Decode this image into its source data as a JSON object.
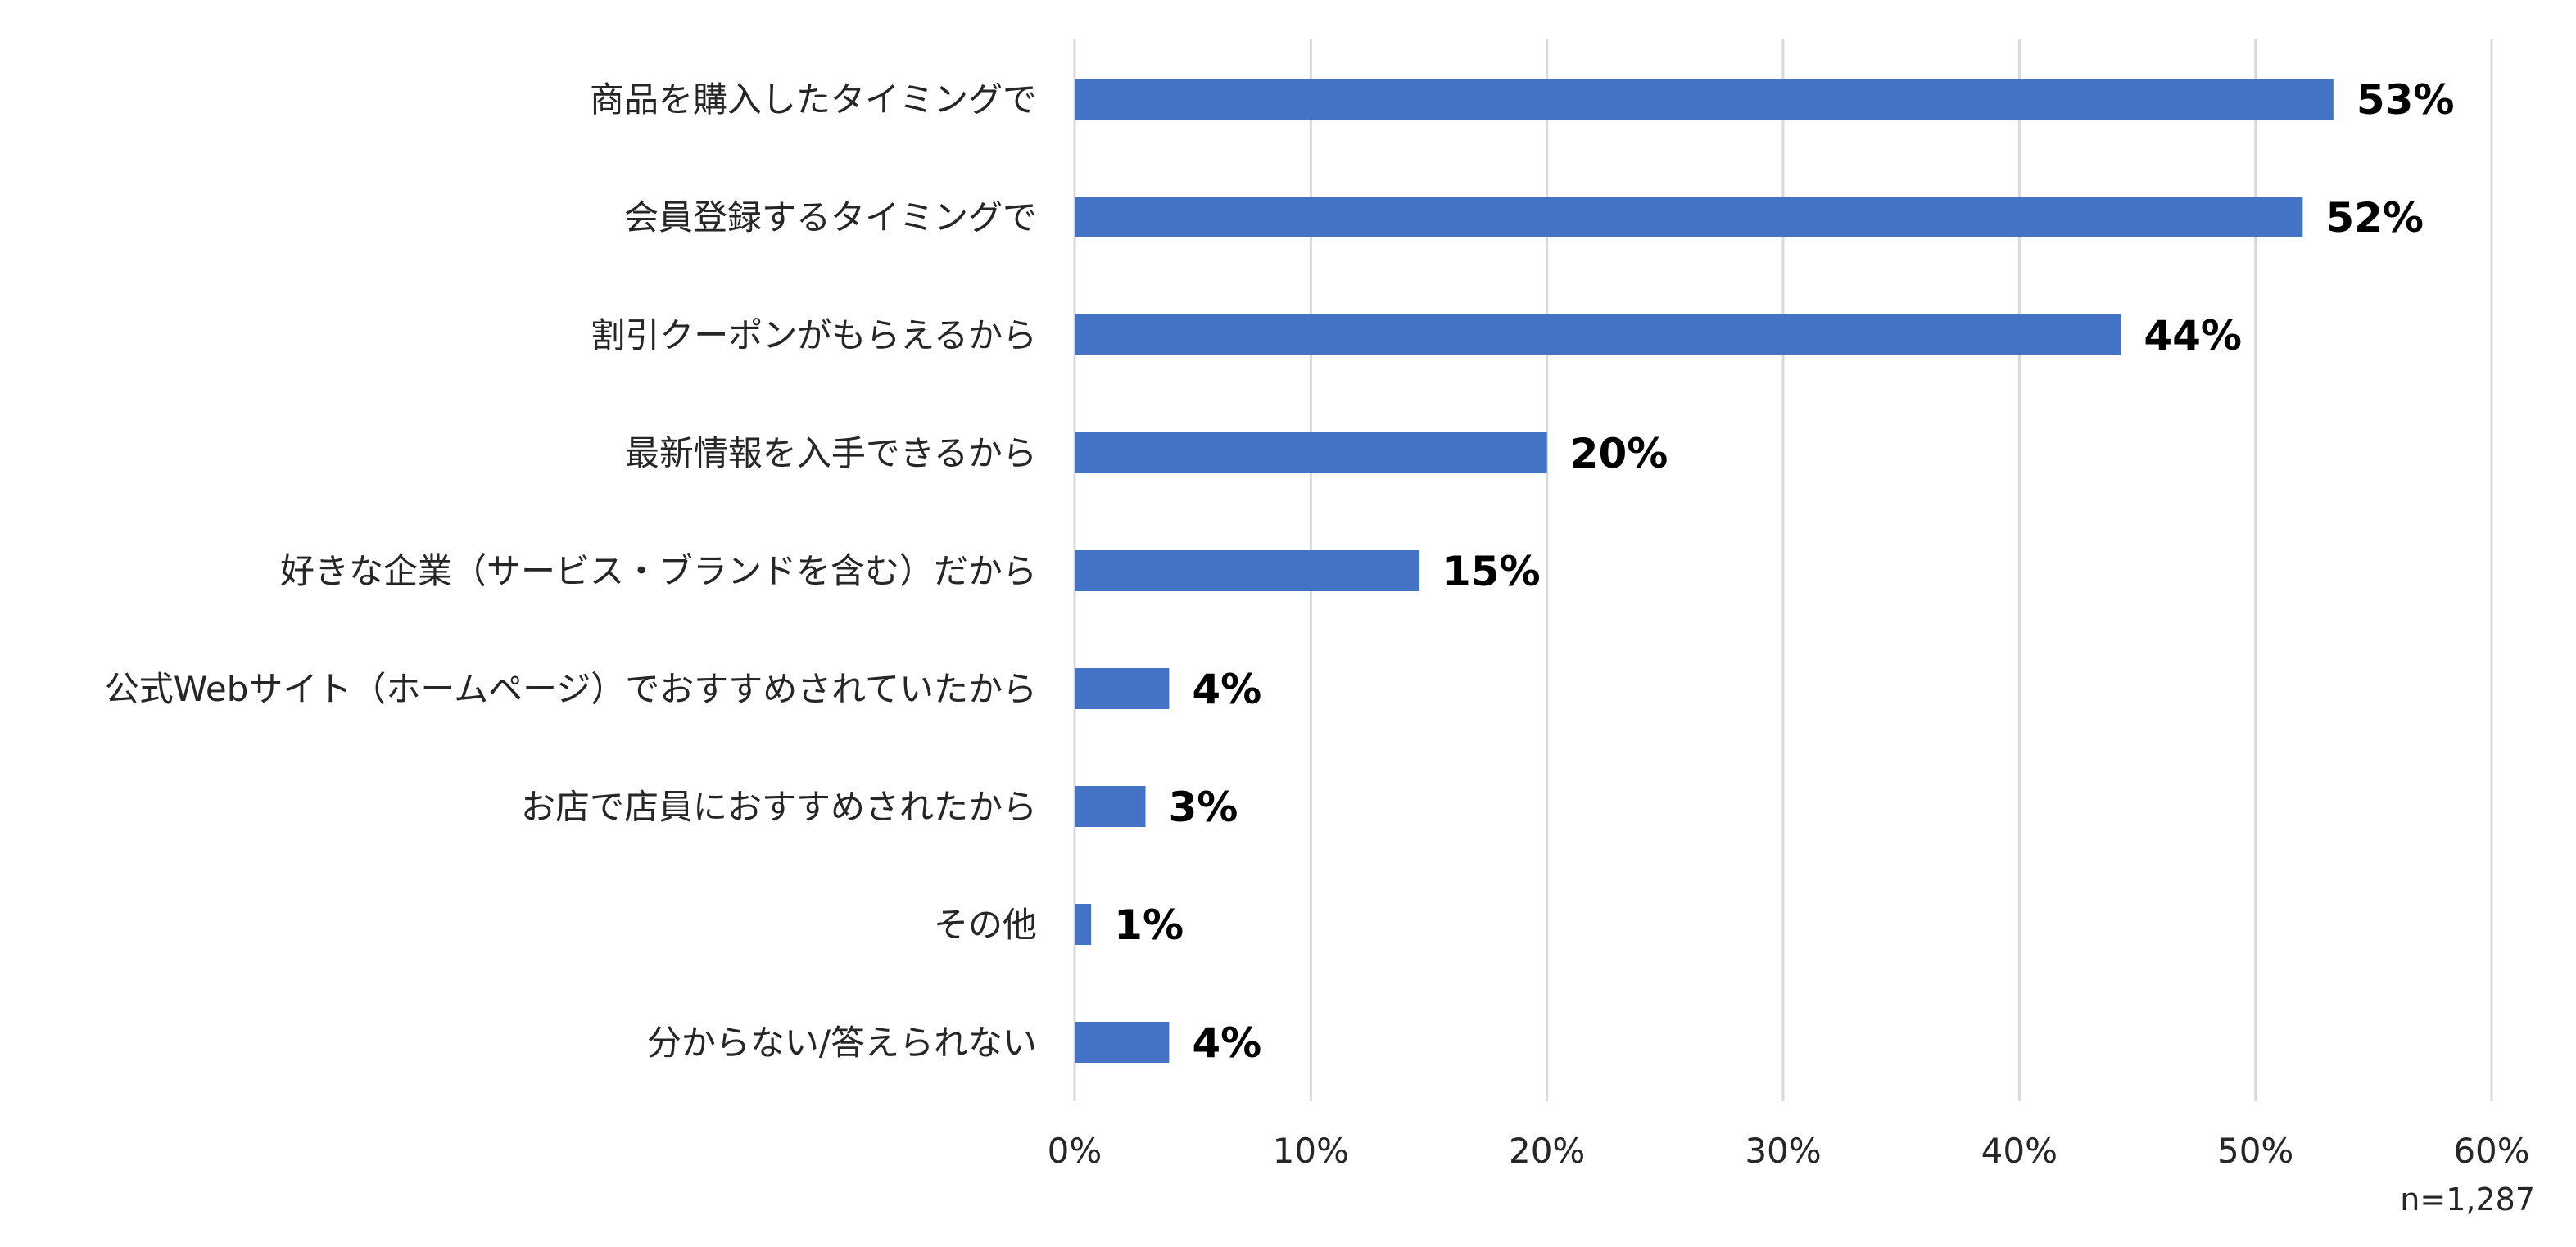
{
  "chart_data": {
    "type": "bar",
    "orientation": "horizontal",
    "categories": [
      "商品を購入したタイミングで",
      "会員登録するタイミングで",
      "割引クーポンがもらえるから",
      "最新情報を入手できるから",
      "好きな企業（サービス・ブランドを含む）だから",
      "公式Webサイト（ホームページ）でおすすめされていたから",
      "お店で店員におすすめされたから",
      "その他",
      "分からない/答えられない"
    ],
    "values": [
      53.3,
      52,
      44.3,
      20,
      14.6,
      4,
      3,
      0.7,
      4
    ],
    "data_labels": [
      "53%",
      "52%",
      "44%",
      "20%",
      "15%",
      "4%",
      "3%",
      "1%",
      "4%"
    ],
    "x_ticks": [
      0,
      10,
      20,
      30,
      40,
      50,
      60
    ],
    "x_tick_labels": [
      "0%",
      "10%",
      "20%",
      "30%",
      "40%",
      "50%",
      "60%"
    ],
    "xlim": [
      0,
      60
    ],
    "grid": true,
    "bar_color": "#4472c4",
    "note": "n=1,287"
  }
}
